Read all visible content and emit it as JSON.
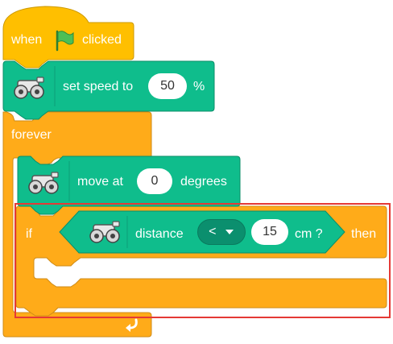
{
  "colors": {
    "events": "#FFBF00",
    "events_stroke": "#CC9900",
    "control": "#FFAB19",
    "control_stroke": "#CF8B17",
    "motor": "#0FBD8C",
    "motor_stroke": "#0B8E69",
    "highlight": "#E53935"
  },
  "hat_block": {
    "text_before": "when",
    "icon": "green-flag-icon",
    "text_after": "clicked"
  },
  "set_speed_block": {
    "icon": "robot-motors-icon",
    "label": "set speed to",
    "value": "50",
    "unit": "%"
  },
  "forever_block": {
    "label": "forever",
    "loop_icon": "loop-arrow-icon"
  },
  "move_block": {
    "icon": "robot-motors-icon",
    "label": "move at",
    "value": "0",
    "unit": "degrees"
  },
  "if_block": {
    "label_if": "if",
    "label_then": "then"
  },
  "distance_block": {
    "icon": "robot-sensor-icon",
    "label": "distance",
    "operator": "<",
    "value": "15",
    "unit": "cm ?"
  }
}
